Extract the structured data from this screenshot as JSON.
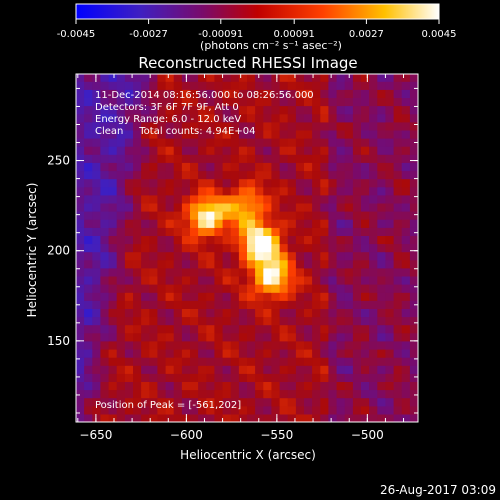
{
  "colorbar": {
    "ticks": [
      "-0.0045",
      "-0.0027",
      "-0.00091",
      "0.00091",
      "0.0027",
      "0.0045"
    ],
    "unit_label": "(photons cm⁻² s⁻¹ asec⁻²)"
  },
  "chart_data": {
    "type": "heatmap",
    "title": "Reconstructed RHESSI Image",
    "xlabel": "Heliocentric X (arcsec)",
    "ylabel": "Heliocentric Y (arcsec)",
    "xlim": [
      -661,
      -472
    ],
    "ylim": [
      105,
      298
    ],
    "xticks": [
      -650,
      -600,
      -550,
      -500
    ],
    "yticks": [
      150,
      200,
      250
    ],
    "colorbar_range": [
      -0.0045,
      0.0045
    ],
    "colormap": "rainbow/hot (blue-purple-red-orange-yellow-white)",
    "info_lines": [
      "11-Dec-2014 08:16:56.000 to 08:26:56.000",
      "Detectors: 3F 6F 7F 9F, Att 0",
      "Energy Range: 6.0 - 12.0 keV",
      "Clean     Total counts: 4.94E+04"
    ],
    "peak_label": "Position of Peak = [-561,202]",
    "sources": [
      {
        "x": -591,
        "y": 217,
        "relative_intensity": 0.85
      },
      {
        "x": -561,
        "y": 202,
        "relative_intensity": 1.0
      },
      {
        "x": -555,
        "y": 183,
        "relative_intensity": 0.8
      },
      {
        "x": -569,
        "y": 223,
        "relative_intensity": 0.6
      }
    ]
  },
  "timestamp": "26-Aug-2017 03:09"
}
